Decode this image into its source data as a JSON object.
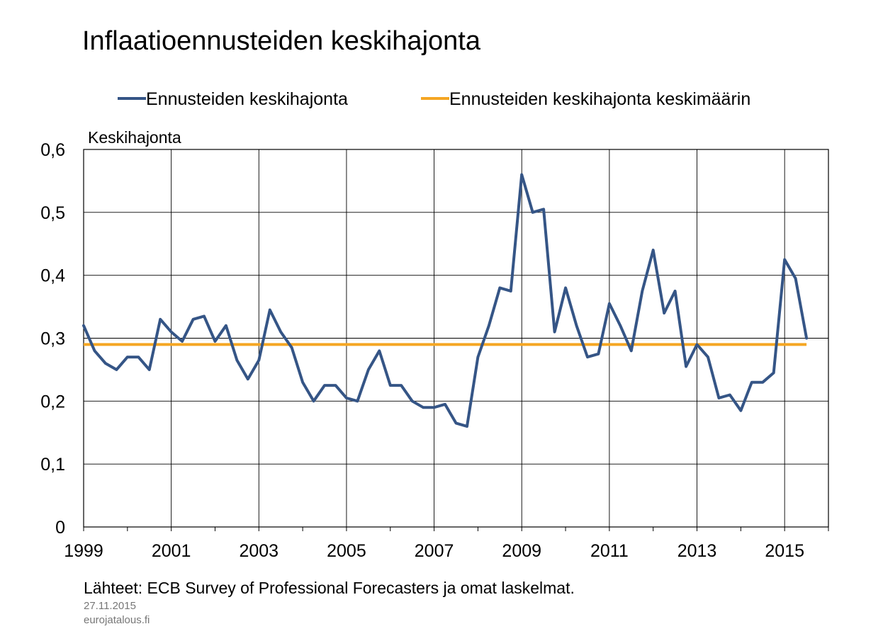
{
  "title": "Inflaatioennusteiden keskihajonta",
  "legend": [
    {
      "label": "Ennusteiden keskihajonta",
      "color": "#355586"
    },
    {
      "label": "Ennusteiden keskihajonta keskimäärin",
      "color": "#f5a623"
    }
  ],
  "source": "Lähteet: ECB Survey of Professional Forecasters ja omat laskelmat.",
  "date": "27.11.2015",
  "site": "eurojatalous.fi",
  "chart_data": {
    "type": "line",
    "ylabel": "Keskihajonta",
    "ylim": [
      0,
      0.6
    ],
    "yticks": [
      0,
      0.1,
      0.2,
      0.3,
      0.4,
      0.5,
      0.6
    ],
    "ytick_labels": [
      "0",
      "0,1",
      "0,2",
      "0,3",
      "0,4",
      "0,5",
      "0,6"
    ],
    "xlim": [
      1999.0,
      2016.0
    ],
    "xticks": [
      1999,
      2001,
      2003,
      2005,
      2007,
      2009,
      2011,
      2013,
      2015
    ],
    "xtick_labels": [
      "1999",
      "2001",
      "2003",
      "2005",
      "2007",
      "2009",
      "2011",
      "2013",
      "2015"
    ],
    "grid": true,
    "series": [
      {
        "name": "Ennusteiden keskihajonta",
        "color": "#355586",
        "x_start": 1999.0,
        "x_step": 0.25,
        "values": [
          0.32,
          0.28,
          0.26,
          0.25,
          0.27,
          0.27,
          0.25,
          0.33,
          0.31,
          0.295,
          0.33,
          0.335,
          0.295,
          0.32,
          0.265,
          0.235,
          0.265,
          0.345,
          0.31,
          0.285,
          0.23,
          0.2,
          0.225,
          0.225,
          0.205,
          0.2,
          0.25,
          0.28,
          0.225,
          0.225,
          0.2,
          0.19,
          0.19,
          0.195,
          0.165,
          0.16,
          0.27,
          0.32,
          0.38,
          0.375,
          0.56,
          0.5,
          0.505,
          0.31,
          0.38,
          0.32,
          0.27,
          0.275,
          0.355,
          0.32,
          0.28,
          0.375,
          0.44,
          0.34,
          0.375,
          0.255,
          0.29,
          0.27,
          0.205,
          0.21,
          0.185,
          0.23,
          0.23,
          0.245,
          0.425,
          0.395,
          0.3
        ]
      },
      {
        "name": "Ennusteiden keskihajonta keskimäärin",
        "color": "#f5a623",
        "x": [
          1999.0,
          2015.5
        ],
        "values": [
          0.29,
          0.29
        ]
      }
    ]
  }
}
